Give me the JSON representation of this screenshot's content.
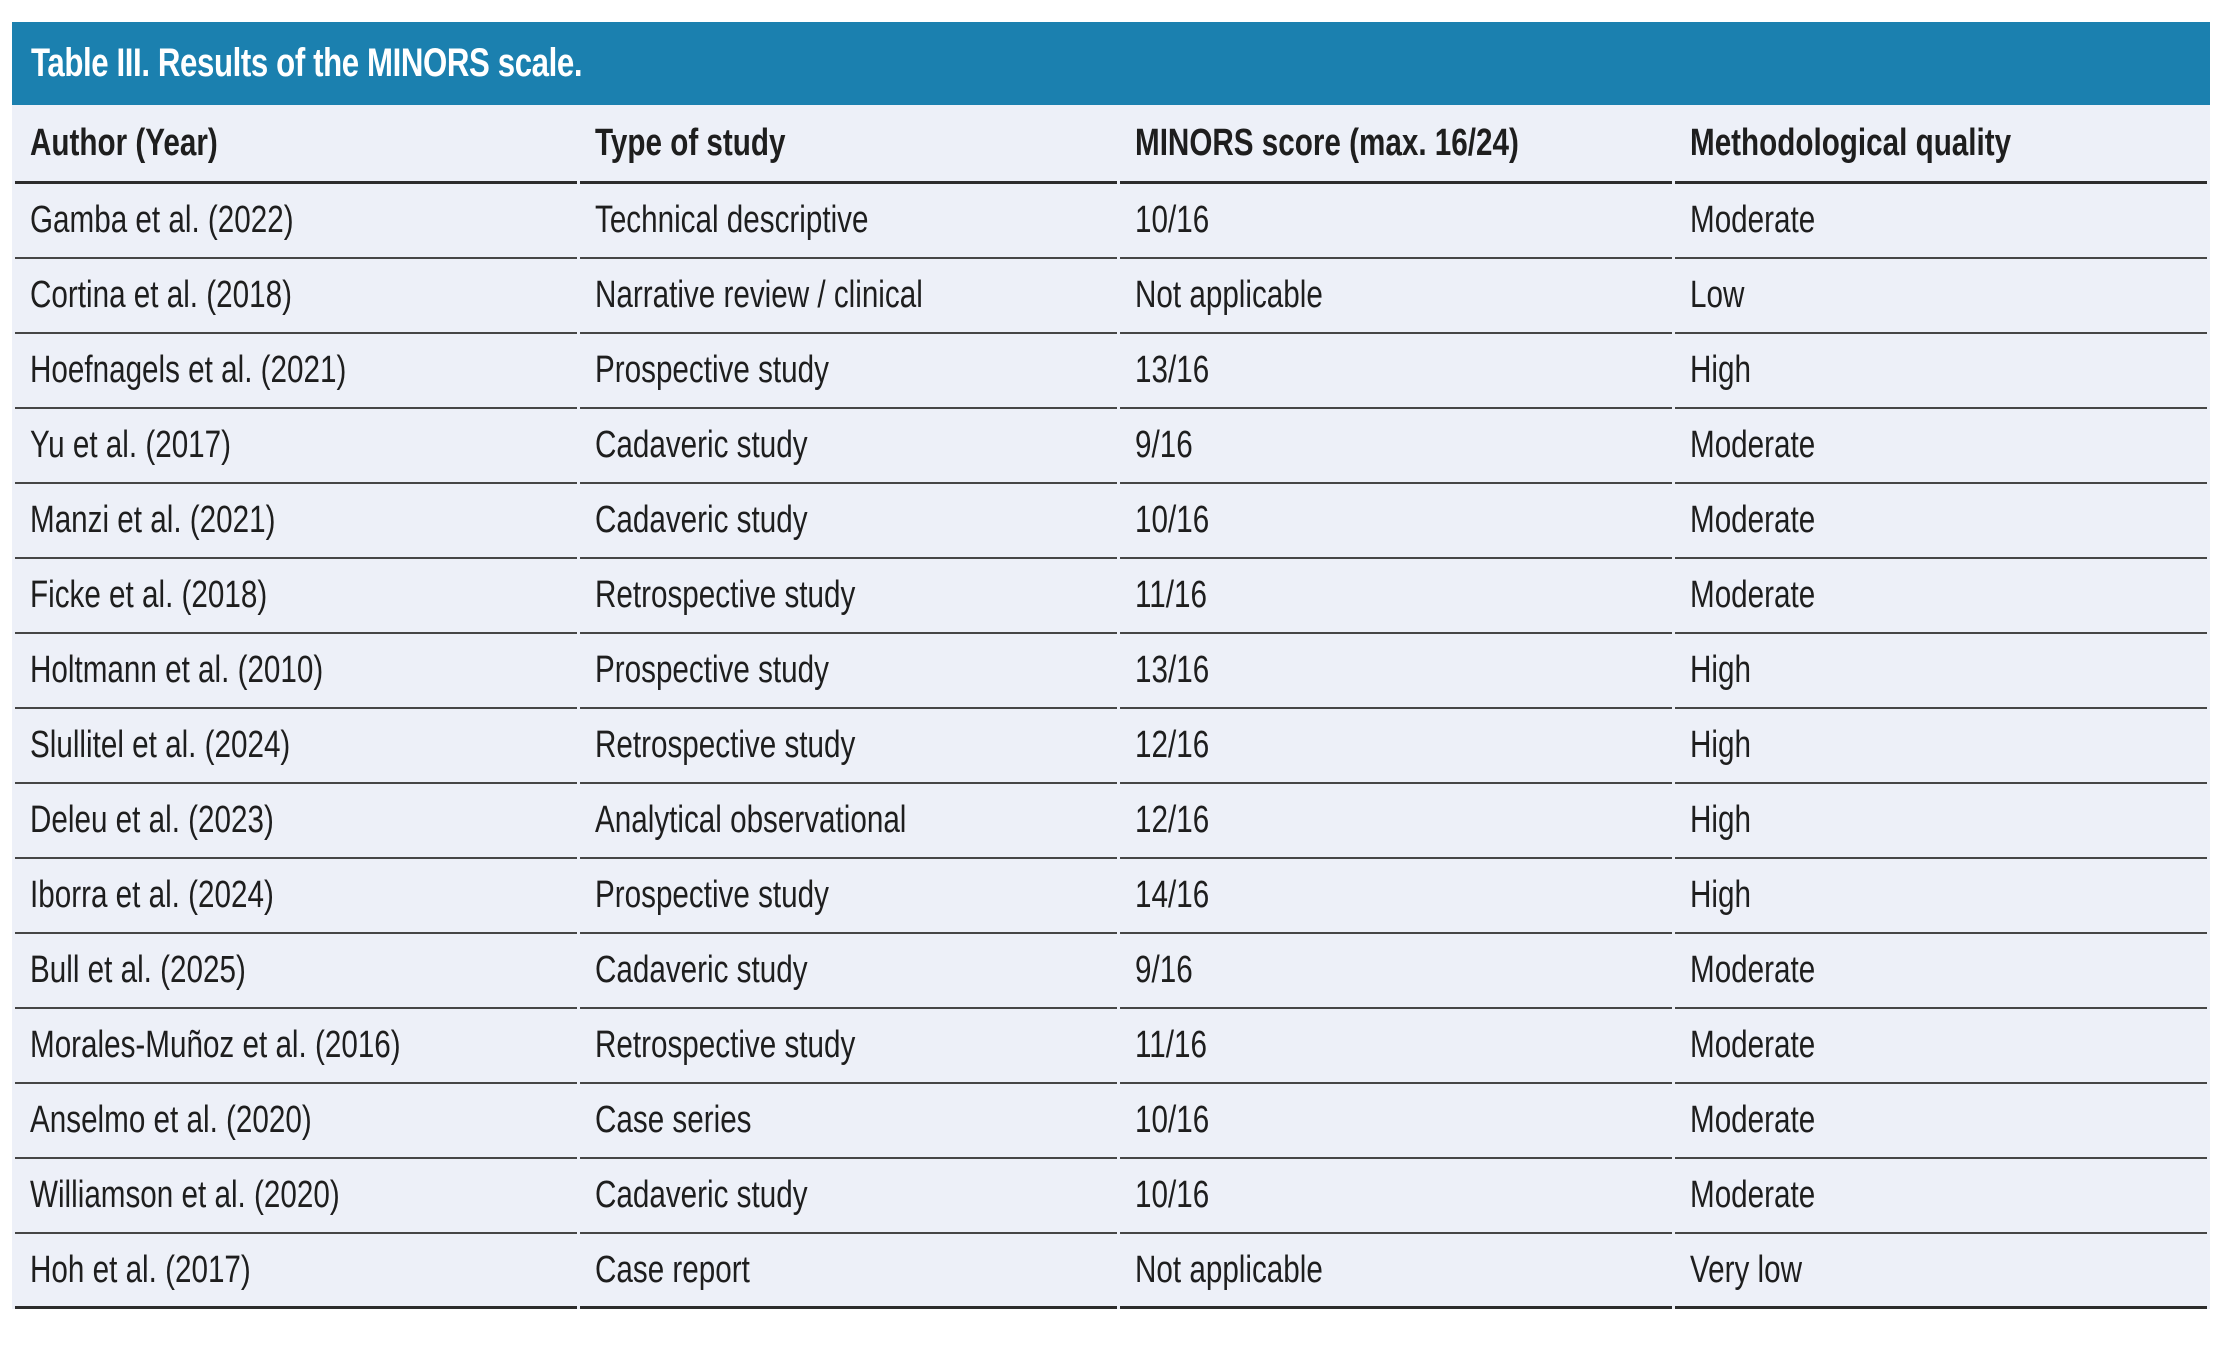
{
  "title": "Table III. Results of the MINORS scale.",
  "colors": {
    "title_bar_bg": "#1b80af",
    "title_text": "#ffffff",
    "table_bg": "#edf0f8",
    "row_divider": "#464646",
    "heavy_divider": "#2c2c2c",
    "body_text": "#1e1e1e"
  },
  "table": {
    "columns": [
      "Author (Year)",
      "Type of study",
      "MINORS score (max. 16/24)",
      "Methodological quality"
    ],
    "rows": [
      {
        "author": "Gamba et al. (2022)",
        "type": "Technical descriptive",
        "score": "10/16",
        "quality": "Moderate"
      },
      {
        "author": "Cortina et al. (2018)",
        "type": "Narrative review / clinical",
        "score": "Not applicable",
        "quality": "Low"
      },
      {
        "author": "Hoefnagels et al. (2021)",
        "type": "Prospective study",
        "score": "13/16",
        "quality": "High"
      },
      {
        "author": "Yu et al. (2017)",
        "type": "Cadaveric study",
        "score": "9/16",
        "quality": "Moderate"
      },
      {
        "author": "Manzi et al. (2021)",
        "type": "Cadaveric study",
        "score": "10/16",
        "quality": "Moderate"
      },
      {
        "author": "Ficke et al. (2018)",
        "type": "Retrospective study",
        "score": "11/16",
        "quality": "Moderate"
      },
      {
        "author": "Holtmann et al. (2010)",
        "type": "Prospective study",
        "score": "13/16",
        "quality": "High"
      },
      {
        "author": "Slullitel et al. (2024)",
        "type": "Retrospective study",
        "score": "12/16",
        "quality": "High"
      },
      {
        "author": "Deleu et al. (2023)",
        "type": "Analytical observational",
        "score": "12/16",
        "quality": "High"
      },
      {
        "author": "Iborra et al. (2024)",
        "type": "Prospective study",
        "score": "14/16",
        "quality": "High"
      },
      {
        "author": "Bull et al. (2025)",
        "type": "Cadaveric study",
        "score": "9/16",
        "quality": "Moderate"
      },
      {
        "author": "Morales-Muñoz et al. (2016)",
        "type": "Retrospective study",
        "score": "11/16",
        "quality": "Moderate"
      },
      {
        "author": "Anselmo et al. (2020)",
        "type": "Case series",
        "score": "10/16",
        "quality": "Moderate"
      },
      {
        "author": "Williamson et al. (2020)",
        "type": "Cadaveric study",
        "score": "10/16",
        "quality": "Moderate"
      },
      {
        "author": "Hoh et al. (2017)",
        "type": "Case report",
        "score": "Not applicable",
        "quality": "Very low"
      }
    ]
  }
}
